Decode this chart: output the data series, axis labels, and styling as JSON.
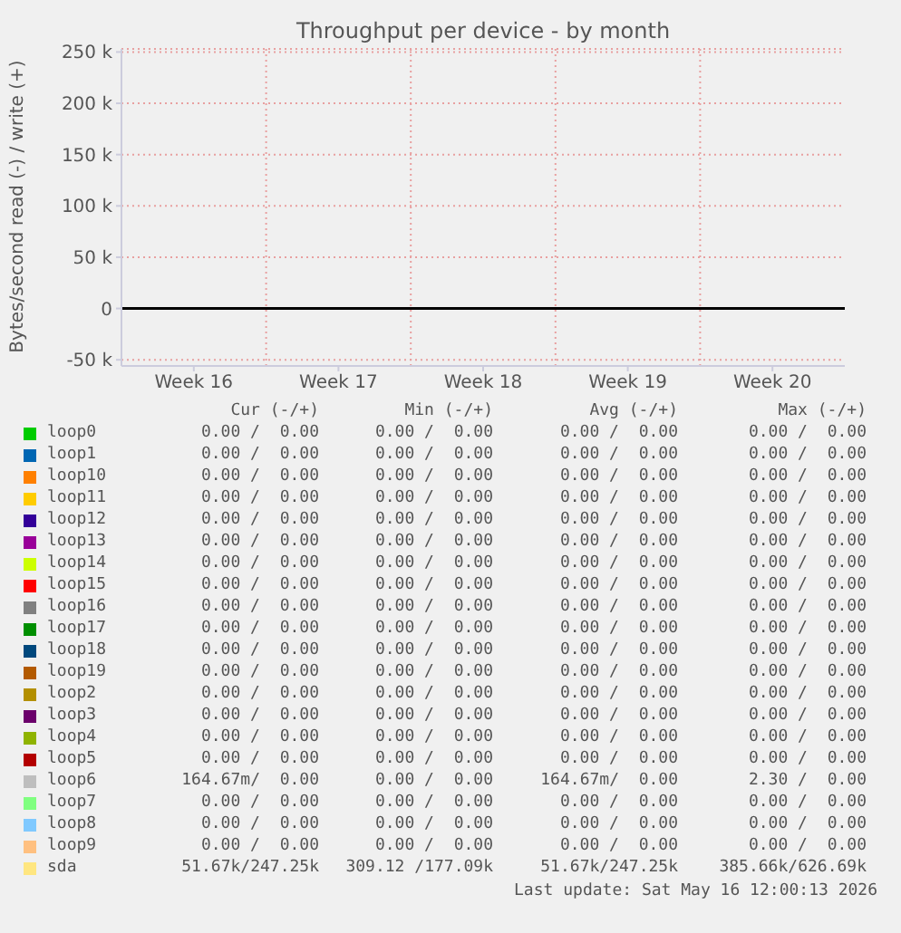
{
  "chart_data": {
    "type": "line",
    "title": "Throughput per device - by month",
    "ylabel": "Bytes/second read (-) / write (+)",
    "categories": [
      "Week 16",
      "Week 17",
      "Week 18",
      "Week 19",
      "Week 20"
    ],
    "ylim": [
      -56000,
      253000
    ],
    "yticks": [
      {
        "value": -50000,
        "label": "-50 k"
      },
      0,
      {
        "value": 50000,
        "label": "50 k"
      },
      {
        "value": 100000,
        "label": "100 k"
      },
      {
        "value": 150000,
        "label": "150 k"
      },
      {
        "value": 200000,
        "label": "200 k"
      },
      {
        "value": 250000,
        "label": "250 k"
      }
    ],
    "ref_lines": [
      {
        "axis": "y",
        "value": 0,
        "label": null,
        "color": "#000000"
      }
    ],
    "grid": true,
    "legend": "bottom",
    "series": [
      {
        "name": "loop0",
        "color": "#00cc00",
        "values": [
          null,
          null,
          null,
          null,
          null
        ]
      },
      {
        "name": "loop1",
        "color": "#0066b3",
        "values": [
          null,
          null,
          null,
          null,
          null
        ]
      },
      {
        "name": "loop10",
        "color": "#ff8000",
        "values": [
          null,
          null,
          null,
          null,
          null
        ]
      },
      {
        "name": "loop11",
        "color": "#ffcc00",
        "values": [
          null,
          null,
          null,
          null,
          null
        ]
      },
      {
        "name": "loop12",
        "color": "#330099",
        "values": [
          null,
          null,
          null,
          null,
          null
        ]
      },
      {
        "name": "loop13",
        "color": "#990099",
        "values": [
          null,
          null,
          null,
          null,
          null
        ]
      },
      {
        "name": "loop14",
        "color": "#ccff00",
        "values": [
          null,
          null,
          null,
          null,
          null
        ]
      },
      {
        "name": "loop15",
        "color": "#ff0000",
        "values": [
          null,
          null,
          null,
          null,
          null
        ]
      },
      {
        "name": "loop16",
        "color": "#808080",
        "values": [
          null,
          null,
          null,
          null,
          null
        ]
      },
      {
        "name": "loop17",
        "color": "#008f00",
        "values": [
          null,
          null,
          null,
          null,
          null
        ]
      },
      {
        "name": "loop18",
        "color": "#00487d",
        "values": [
          null,
          null,
          null,
          null,
          null
        ]
      },
      {
        "name": "loop19",
        "color": "#b35a00",
        "values": [
          null,
          null,
          null,
          null,
          null
        ]
      },
      {
        "name": "loop2",
        "color": "#b38f00",
        "values": [
          null,
          null,
          null,
          null,
          null
        ]
      },
      {
        "name": "loop3",
        "color": "#6b006b",
        "values": [
          null,
          null,
          null,
          null,
          null
        ]
      },
      {
        "name": "loop4",
        "color": "#8fb300",
        "values": [
          null,
          null,
          null,
          null,
          null
        ]
      },
      {
        "name": "loop5",
        "color": "#b30000",
        "values": [
          null,
          null,
          null,
          null,
          null
        ]
      },
      {
        "name": "loop6",
        "color": "#bebebe",
        "values": [
          null,
          null,
          null,
          null,
          null
        ]
      },
      {
        "name": "loop7",
        "color": "#80ff80",
        "values": [
          null,
          null,
          null,
          null,
          null
        ]
      },
      {
        "name": "loop8",
        "color": "#80c9ff",
        "values": [
          null,
          null,
          null,
          null,
          null
        ]
      },
      {
        "name": "loop9",
        "color": "#ffc080",
        "values": [
          null,
          null,
          null,
          null,
          null
        ]
      },
      {
        "name": "sda",
        "color": "#ffe680",
        "values": [
          null,
          null,
          null,
          null,
          null
        ]
      }
    ],
    "annotations": [
      "Cur (-/+)",
      "Min (-/+)",
      "Avg (-/+)",
      "Max (-/+)",
      "0.00 /  0.00",
      "0.00 /  0.00",
      "0.00 /  0.00",
      "0.00 /  0.00",
      "0.00 /  0.00",
      "0.00 /  0.00",
      "0.00 /  0.00",
      "0.00 /  0.00",
      "0.00 /  0.00",
      "0.00 /  0.00",
      "0.00 /  0.00",
      "0.00 /  0.00",
      "0.00 /  0.00",
      "0.00 /  0.00",
      "0.00 /  0.00",
      "0.00 /  0.00",
      "0.00 /  0.00",
      "0.00 /  0.00",
      "0.00 /  0.00",
      "0.00 /  0.00",
      "0.00 /  0.00",
      "0.00 /  0.00",
      "0.00 /  0.00",
      "0.00 /  0.00",
      "0.00 /  0.00",
      "0.00 /  0.00",
      "0.00 /  0.00",
      "0.00 /  0.00",
      "0.00 /  0.00",
      "0.00 /  0.00",
      "0.00 /  0.00",
      "0.00 /  0.00",
      "0.00 /  0.00",
      "0.00 /  0.00",
      "0.00 /  0.00",
      "0.00 /  0.00",
      "0.00 /  0.00",
      "0.00 /  0.00",
      "0.00 /  0.00",
      "0.00 /  0.00",
      "0.00 /  0.00",
      "0.00 /  0.00",
      "0.00 /  0.00",
      "0.00 /  0.00",
      "0.00 /  0.00",
      "0.00 /  0.00",
      "0.00 /  0.00",
      "0.00 /  0.00",
      "0.00 /  0.00",
      "0.00 /  0.00",
      "0.00 /  0.00",
      "0.00 /  0.00",
      "0.00 /  0.00",
      "0.00 /  0.00",
      "0.00 /  0.00",
      "0.00 /  0.00",
      "0.00 /  0.00",
      "0.00 /  0.00",
      "0.00 /  0.00",
      "0.00 /  0.00",
      "0.00 /  0.00",
      "0.00 /  0.00",
      "0.00 /  0.00",
      "0.00 /  0.00",
      "164.67m/  0.00",
      "0.00 /  0.00",
      "164.67m/  0.00",
      "2.30 /  0.00",
      "0.00 /  0.00",
      "0.00 /  0.00",
      "0.00 /  0.00",
      "0.00 /  0.00",
      "0.00 /  0.00",
      "0.00 /  0.00",
      "0.00 /  0.00",
      "0.00 /  0.00",
      "0.00 /  0.00",
      "0.00 /  0.00",
      "0.00 /  0.00",
      "0.00 /  0.00",
      "51.67k/247.25k",
      "309.12 /177.09k",
      "51.67k/247.25k",
      "385.66k/626.69k",
      "Last update: Sat May 16 12:00:13 2026"
    ]
  }
}
